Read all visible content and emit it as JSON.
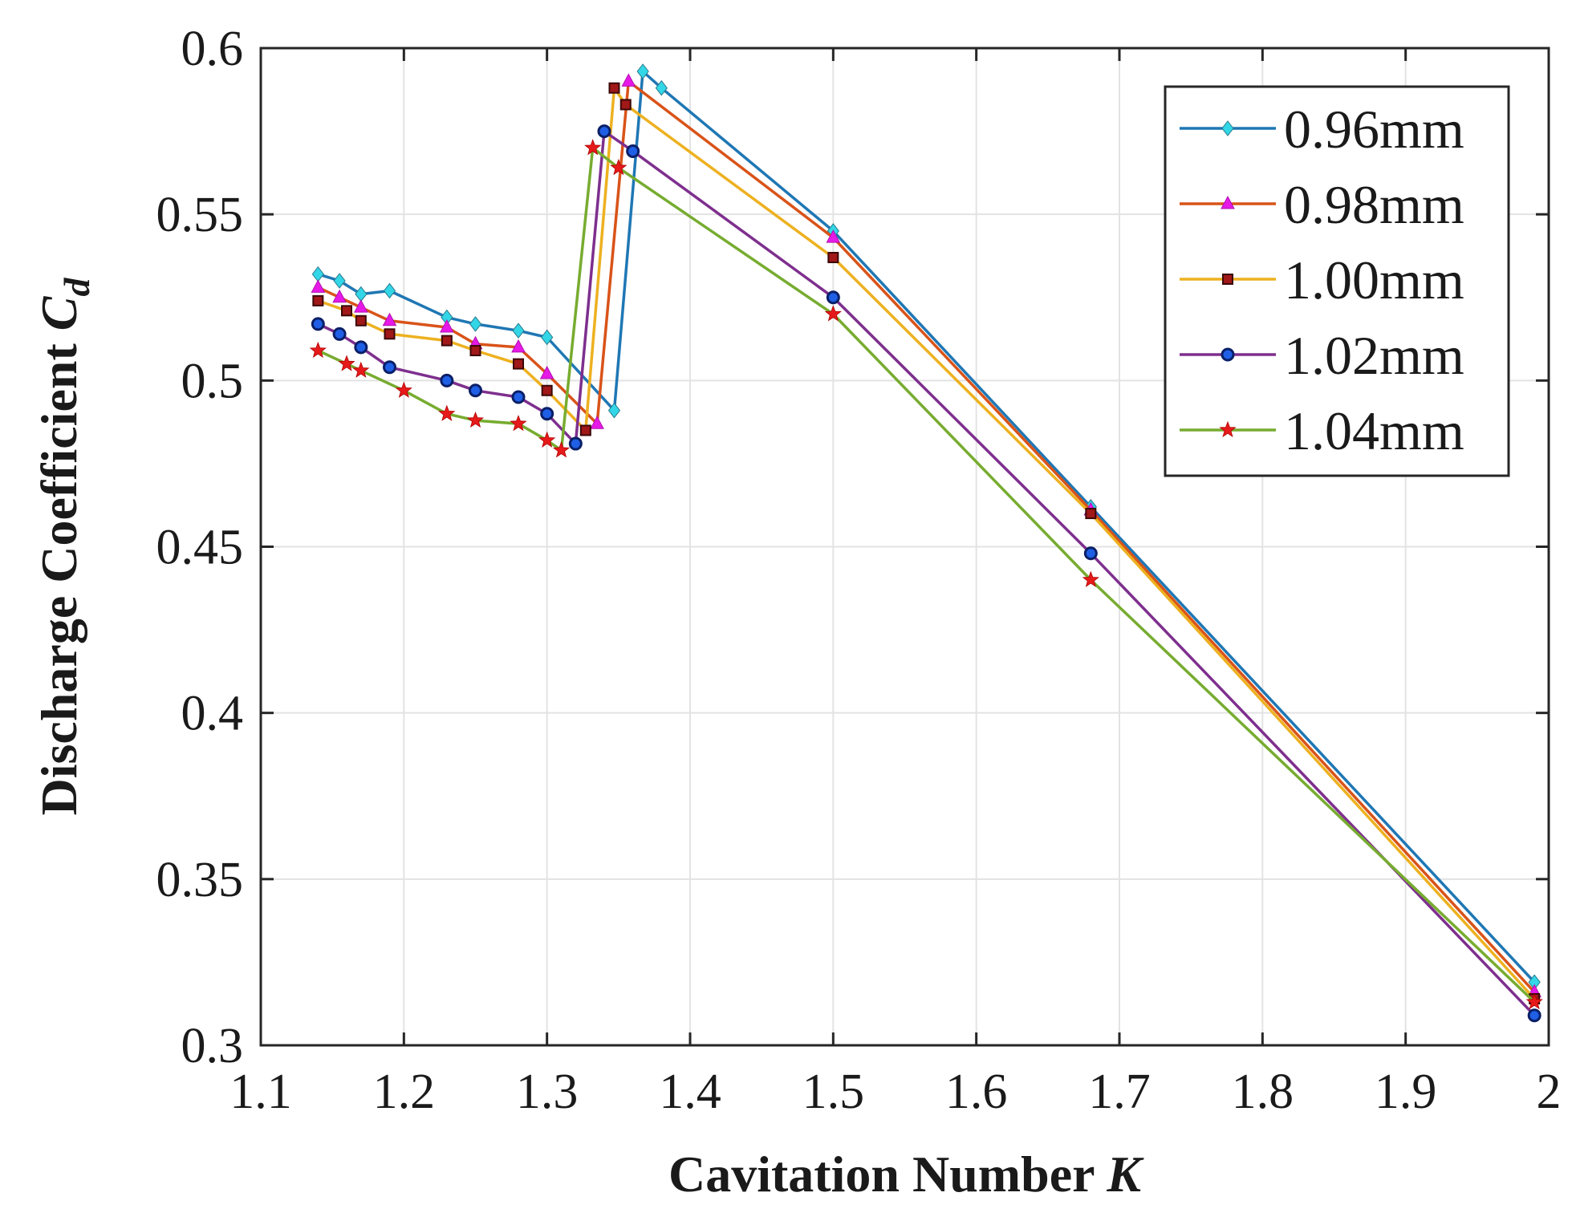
{
  "chart_data": {
    "type": "line",
    "title": "",
    "xlabel": "Cavitation Number",
    "xlabel_symbol": "K",
    "ylabel": "Discharge Coefficient",
    "ylabel_symbol": "C",
    "ylabel_subscript": "d",
    "xlim": [
      1.1,
      2.0
    ],
    "ylim": [
      0.3,
      0.6
    ],
    "xticks": [
      1.1,
      1.2,
      1.3,
      1.4,
      1.5,
      1.6,
      1.7,
      1.8,
      1.9,
      2.0
    ],
    "xtick_labels": [
      "1.1",
      "1.2",
      "1.3",
      "1.4",
      "1.5",
      "1.6",
      "1.7",
      "1.8",
      "1.9",
      "2"
    ],
    "yticks": [
      0.3,
      0.35,
      0.4,
      0.45,
      0.5,
      0.55,
      0.6
    ],
    "ytick_labels": [
      "0.3",
      "0.35",
      "0.4",
      "0.45",
      "0.5",
      "0.55",
      "0.6"
    ],
    "grid": true,
    "legend_position": "top-right",
    "series": [
      {
        "name": "0.96mm",
        "color": "#1f77b4",
        "marker": "diamond",
        "marker_fill": "#33d6e6",
        "x": [
          1.14,
          1.155,
          1.17,
          1.19,
          1.23,
          1.25,
          1.28,
          1.3,
          1.347,
          1.367,
          1.38,
          1.5,
          1.68,
          1.99
        ],
        "y": [
          0.532,
          0.53,
          0.526,
          0.527,
          0.519,
          0.517,
          0.515,
          0.513,
          0.491,
          0.593,
          0.588,
          0.545,
          0.462,
          0.319
        ]
      },
      {
        "name": "0.98mm",
        "color": "#d95319",
        "marker": "triangle",
        "marker_fill": "#e619e6",
        "x": [
          1.14,
          1.155,
          1.17,
          1.19,
          1.23,
          1.25,
          1.28,
          1.3,
          1.335,
          1.357,
          1.5,
          1.68,
          1.99
        ],
        "y": [
          0.528,
          0.525,
          0.522,
          0.518,
          0.516,
          0.511,
          0.51,
          0.502,
          0.487,
          0.59,
          0.543,
          0.461,
          0.316
        ]
      },
      {
        "name": "1.00mm",
        "color": "#edb120",
        "marker": "square",
        "marker_fill": "#a01818",
        "x": [
          1.14,
          1.16,
          1.17,
          1.19,
          1.23,
          1.25,
          1.28,
          1.3,
          1.327,
          1.347,
          1.355,
          1.5,
          1.68,
          1.99
        ],
        "y": [
          0.524,
          0.521,
          0.518,
          0.514,
          0.512,
          0.509,
          0.505,
          0.497,
          0.485,
          0.588,
          0.583,
          0.537,
          0.46,
          0.314
        ]
      },
      {
        "name": "1.02mm",
        "color": "#7e2f8e",
        "marker": "circle",
        "marker_fill": "#1f5fe6",
        "x": [
          1.14,
          1.155,
          1.17,
          1.19,
          1.23,
          1.25,
          1.28,
          1.3,
          1.32,
          1.34,
          1.36,
          1.5,
          1.68,
          1.99
        ],
        "y": [
          0.517,
          0.514,
          0.51,
          0.504,
          0.5,
          0.497,
          0.495,
          0.49,
          0.481,
          0.575,
          0.569,
          0.525,
          0.448,
          0.309
        ]
      },
      {
        "name": "1.04mm",
        "color": "#77ac30",
        "marker": "star",
        "marker_fill": "#e61a1a",
        "x": [
          1.14,
          1.16,
          1.17,
          1.2,
          1.23,
          1.25,
          1.28,
          1.3,
          1.31,
          1.332,
          1.35,
          1.5,
          1.68,
          1.99
        ],
        "y": [
          0.509,
          0.505,
          0.503,
          0.497,
          0.49,
          0.488,
          0.487,
          0.482,
          0.479,
          0.57,
          0.564,
          0.52,
          0.44,
          0.313
        ]
      }
    ]
  }
}
